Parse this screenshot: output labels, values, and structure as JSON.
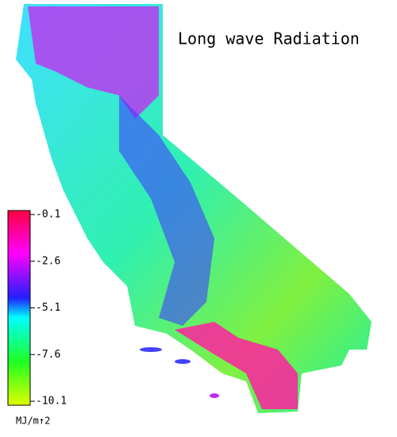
{
  "title": "Long wave Radiation",
  "legend": {
    "ticks": [
      -0.1,
      -2.6,
      -5.1,
      -7.6,
      -10.1
    ],
    "unit": "MJ/m↑2"
  }
}
